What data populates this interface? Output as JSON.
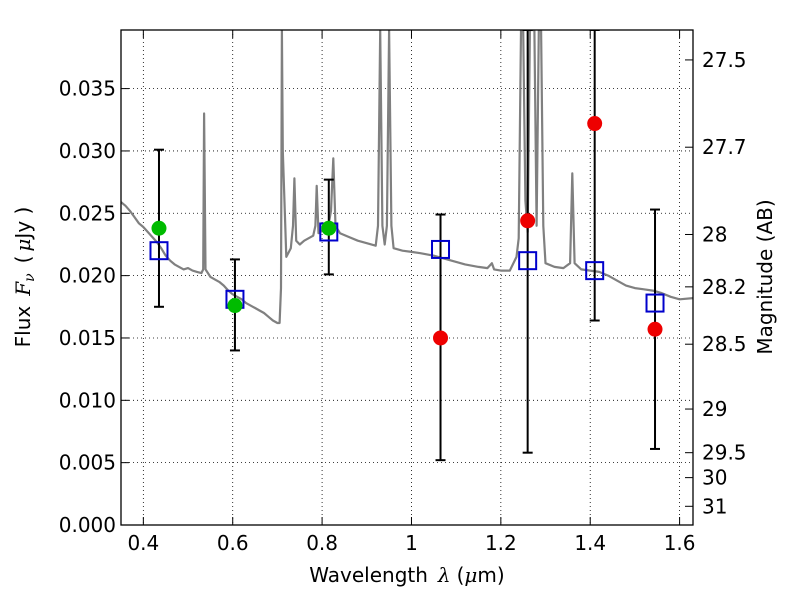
{
  "chart_data": {
    "type": "scatter",
    "xlabel_prefix": "Wavelength",
    "xlabel_symbol": "λ",
    "xlabel_unit_open": "(",
    "xlabel_unit_mu": "μ",
    "xlabel_unit_rest": "m)",
    "ylabel_prefix": "Flux",
    "ylabel_symbol": "F",
    "ylabel_sub": "ν",
    "ylabel_unit_open": "(",
    "ylabel_unit_mu": "μ",
    "ylabel_unit_rest": "Jy )",
    "y2label": "Magnitude (AB)",
    "xlim": [
      0.35,
      1.63
    ],
    "ylim": [
      0.0,
      0.0397
    ],
    "grid": true,
    "x_ticks": [
      0.4,
      0.6,
      0.8,
      1.0,
      1.2,
      1.4,
      1.6
    ],
    "x_tick_labels": [
      "0.4",
      "0.6",
      "0.8",
      "1",
      "1.2",
      "1.4",
      "1.6"
    ],
    "y_ticks": [
      0.0,
      0.005,
      0.01,
      0.015,
      0.02,
      0.025,
      0.03,
      0.035
    ],
    "y_tick_labels": [
      "0.000",
      "0.005",
      "0.010",
      "0.015",
      "0.020",
      "0.025",
      "0.030",
      "0.035"
    ],
    "y2_ticks": [
      27.5,
      27.7,
      28,
      28.2,
      28.5,
      29,
      29.5,
      30,
      31
    ],
    "y2_tick_labels": [
      "27.5",
      "27.7",
      "28",
      "28.2",
      "28.5",
      "29",
      "29.5",
      "30",
      "31"
    ],
    "y2_tick_flux": [
      0.0373,
      0.0303,
      0.0233,
      0.0191,
      0.0145,
      0.0093,
      0.0058,
      0.0038,
      0.0015
    ],
    "series": [
      {
        "role": "model-spectrum",
        "color": "#808080",
        "points": [
          [
            0.35,
            0.0259
          ],
          [
            0.36,
            0.0256
          ],
          [
            0.37,
            0.0252
          ],
          [
            0.38,
            0.0247
          ],
          [
            0.39,
            0.0242
          ],
          [
            0.4,
            0.0239
          ],
          [
            0.41,
            0.0235
          ],
          [
            0.42,
            0.0231
          ],
          [
            0.43,
            0.0227
          ],
          [
            0.44,
            0.0222
          ],
          [
            0.45,
            0.0216
          ],
          [
            0.46,
            0.0212
          ],
          [
            0.47,
            0.0209
          ],
          [
            0.48,
            0.0207
          ],
          [
            0.49,
            0.0205
          ],
          [
            0.5,
            0.0206
          ],
          [
            0.51,
            0.0204
          ],
          [
            0.52,
            0.0203
          ],
          [
            0.53,
            0.0202
          ],
          [
            0.534,
            0.0205
          ],
          [
            0.536,
            0.033
          ],
          [
            0.539,
            0.0205
          ],
          [
            0.55,
            0.0199
          ],
          [
            0.56,
            0.0197
          ],
          [
            0.57,
            0.0195
          ],
          [
            0.58,
            0.0192
          ],
          [
            0.59,
            0.0188
          ],
          [
            0.6,
            0.0185
          ],
          [
            0.61,
            0.0183
          ],
          [
            0.62,
            0.0181
          ],
          [
            0.63,
            0.0178
          ],
          [
            0.64,
            0.0176
          ],
          [
            0.65,
            0.0174
          ],
          [
            0.66,
            0.0172
          ],
          [
            0.67,
            0.017
          ],
          [
            0.68,
            0.0167
          ],
          [
            0.69,
            0.0164
          ],
          [
            0.7,
            0.0162
          ],
          [
            0.705,
            0.0162
          ],
          [
            0.708,
            0.019
          ],
          [
            0.71,
            0.0397
          ],
          [
            0.712,
            0.03
          ],
          [
            0.72,
            0.0215
          ],
          [
            0.73,
            0.0222
          ],
          [
            0.735,
            0.024
          ],
          [
            0.738,
            0.0278
          ],
          [
            0.742,
            0.0228
          ],
          [
            0.75,
            0.0225
          ],
          [
            0.76,
            0.0228
          ],
          [
            0.77,
            0.023
          ],
          [
            0.78,
            0.0232
          ],
          [
            0.785,
            0.024
          ],
          [
            0.788,
            0.0272
          ],
          [
            0.792,
            0.0234
          ],
          [
            0.8,
            0.0236
          ],
          [
            0.81,
            0.0238
          ],
          [
            0.815,
            0.0242
          ],
          [
            0.82,
            0.0252
          ],
          [
            0.825,
            0.0294
          ],
          [
            0.83,
            0.024
          ],
          [
            0.84,
            0.0234
          ],
          [
            0.86,
            0.0231
          ],
          [
            0.88,
            0.0228
          ],
          [
            0.9,
            0.0226
          ],
          [
            0.92,
            0.0224
          ],
          [
            0.925,
            0.024
          ],
          [
            0.93,
            0.0397
          ],
          [
            0.935,
            0.024
          ],
          [
            0.94,
            0.0225
          ],
          [
            0.945,
            0.024
          ],
          [
            0.95,
            0.0397
          ],
          [
            0.955,
            0.024
          ],
          [
            0.96,
            0.0222
          ],
          [
            0.98,
            0.022
          ],
          [
            1.0,
            0.0219
          ],
          [
            1.02,
            0.0218
          ],
          [
            1.05,
            0.0216
          ],
          [
            1.08,
            0.0213
          ],
          [
            1.1,
            0.0211
          ],
          [
            1.12,
            0.0209
          ],
          [
            1.15,
            0.0207
          ],
          [
            1.17,
            0.0206
          ],
          [
            1.18,
            0.021
          ],
          [
            1.185,
            0.0205
          ],
          [
            1.2,
            0.0204
          ],
          [
            1.22,
            0.0204
          ],
          [
            1.235,
            0.0215
          ],
          [
            1.24,
            0.023
          ],
          [
            1.245,
            0.0397
          ],
          [
            1.25,
            0.0397
          ],
          [
            1.255,
            0.026
          ],
          [
            1.26,
            0.0235
          ],
          [
            1.265,
            0.0397
          ],
          [
            1.27,
            0.0397
          ],
          [
            1.275,
            0.0397
          ],
          [
            1.28,
            0.024
          ],
          [
            1.285,
            0.0397
          ],
          [
            1.29,
            0.0397
          ],
          [
            1.295,
            0.024
          ],
          [
            1.3,
            0.021
          ],
          [
            1.32,
            0.0207
          ],
          [
            1.34,
            0.0206
          ],
          [
            1.355,
            0.021
          ],
          [
            1.36,
            0.0282
          ],
          [
            1.365,
            0.021
          ],
          [
            1.38,
            0.0205
          ],
          [
            1.4,
            0.0204
          ],
          [
            1.42,
            0.0203
          ],
          [
            1.44,
            0.02
          ],
          [
            1.46,
            0.0196
          ],
          [
            1.48,
            0.0192
          ],
          [
            1.5,
            0.019
          ],
          [
            1.52,
            0.0189
          ],
          [
            1.54,
            0.0188
          ],
          [
            1.56,
            0.0186
          ],
          [
            1.58,
            0.0183
          ],
          [
            1.6,
            0.0181
          ],
          [
            1.63,
            0.0182
          ]
        ]
      },
      {
        "role": "model-magnitudes",
        "marker": "open-square",
        "color": "#0000cc",
        "points": [
          [
            0.435,
            0.022
          ],
          [
            0.605,
            0.0181
          ],
          [
            0.815,
            0.0235
          ],
          [
            1.065,
            0.0221
          ],
          [
            1.26,
            0.0212
          ],
          [
            1.41,
            0.0204
          ],
          [
            1.545,
            0.0178
          ]
        ]
      },
      {
        "role": "detections",
        "marker": "filled-circle",
        "color": "#00bb00",
        "points": [
          [
            0.435,
            0.0238
          ],
          [
            0.605,
            0.0176
          ],
          [
            0.815,
            0.0238
          ]
        ]
      },
      {
        "role": "upper-limits",
        "marker": "filled-circle",
        "color": "#ee0000",
        "points": [
          [
            1.065,
            0.015
          ],
          [
            1.26,
            0.0244
          ],
          [
            1.41,
            0.0322
          ],
          [
            1.545,
            0.0157
          ]
        ]
      },
      {
        "role": "error-bars",
        "color": "#000000",
        "bars": [
          [
            0.435,
            0.0175,
            0.0301
          ],
          [
            0.605,
            0.014,
            0.0213
          ],
          [
            0.815,
            0.0201,
            0.0277
          ],
          [
            1.065,
            0.0052,
            0.0249
          ],
          [
            1.26,
            0.0058,
            0.0397
          ],
          [
            1.41,
            0.0164,
            0.0397
          ],
          [
            1.545,
            0.0061,
            0.0253
          ]
        ]
      }
    ]
  }
}
